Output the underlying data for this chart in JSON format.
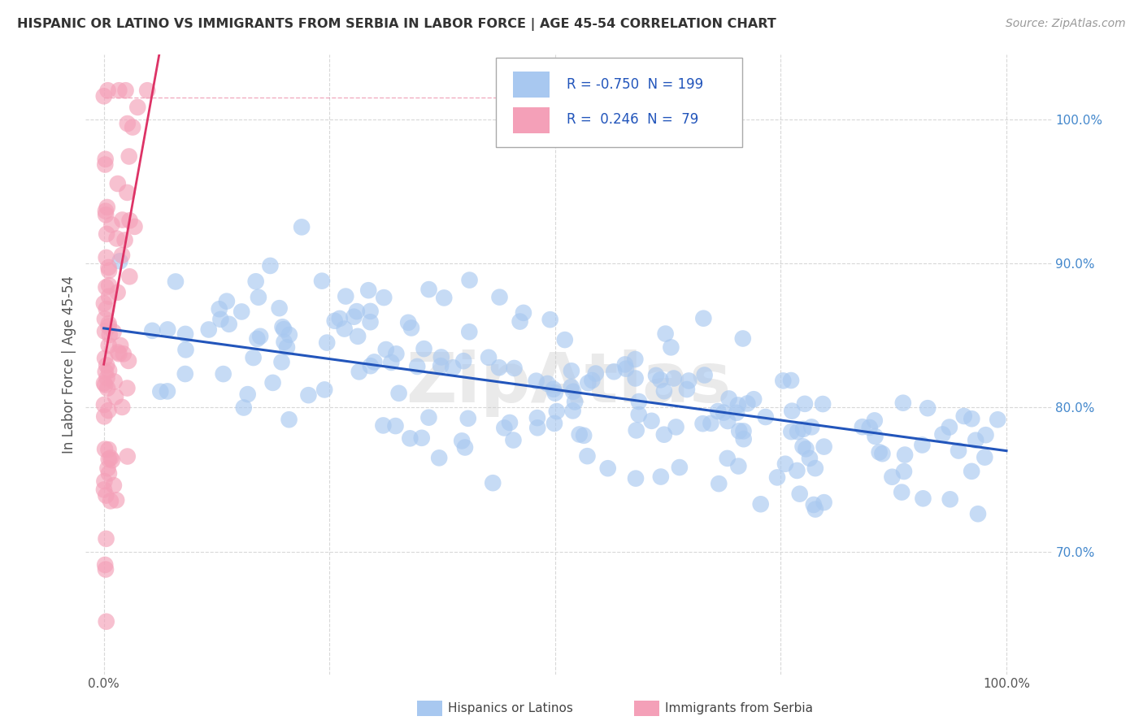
{
  "title": "HISPANIC OR LATINO VS IMMIGRANTS FROM SERBIA IN LABOR FORCE | AGE 45-54 CORRELATION CHART",
  "source": "Source: ZipAtlas.com",
  "ylabel": "In Labor Force | Age 45-54",
  "xlim": [
    -0.02,
    1.05
  ],
  "ylim": [
    0.615,
    1.045
  ],
  "blue_R": "-0.750",
  "blue_N": "199",
  "pink_R": "0.246",
  "pink_N": "79",
  "blue_color": "#a8c8f0",
  "pink_color": "#f4a0b8",
  "blue_line_color": "#2255bb",
  "pink_line_color": "#dd3366",
  "background_color": "#ffffff",
  "grid_color": "#d8d8d8",
  "watermark": "ZipAtlas",
  "ytick_positions": [
    0.7,
    0.8,
    0.9,
    1.0
  ],
  "ytick_labels": [
    "70.0%",
    "80.0%",
    "90.0%",
    "100.0%"
  ],
  "right_tick_color": "#4488cc"
}
